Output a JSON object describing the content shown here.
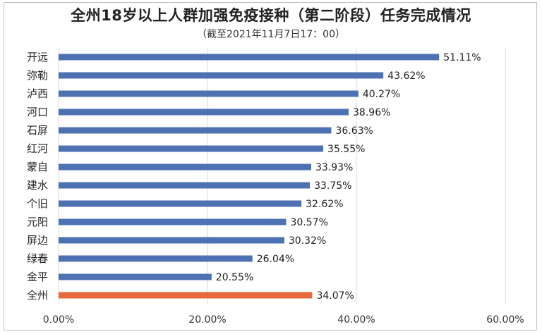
{
  "chart_data": {
    "type": "bar",
    "orientation": "horizontal",
    "title": "全州18岁以上人群加强免疫接种（第二阶段）任务完成情况",
    "subtitle": "（截至2021年11月7日17：00）",
    "categories": [
      "开远",
      "弥勒",
      "泸西",
      "河口",
      "石屏",
      "红河",
      "蒙自",
      "建水",
      "个旧",
      "元阳",
      "屏边",
      "绿春",
      "金平",
      "全州"
    ],
    "values": [
      51.11,
      43.62,
      40.27,
      38.96,
      36.63,
      35.55,
      33.93,
      33.75,
      32.62,
      30.57,
      30.32,
      26.04,
      20.55,
      34.07
    ],
    "value_labels": [
      "51.11%",
      "43.62%",
      "40.27%",
      "38.96%",
      "36.63%",
      "35.55%",
      "33.93%",
      "33.75%",
      "32.62%",
      "30.57%",
      "30.32%",
      "26.04%",
      "20.55%",
      "34.07%"
    ],
    "xlim": [
      0,
      60
    ],
    "xticks": [
      0,
      20,
      40,
      60
    ],
    "xtick_labels": [
      "0.00%",
      "20.00%",
      "40.00%",
      "60.00%"
    ],
    "grid": "vertical",
    "legend": "none",
    "colors": {
      "default": "#4e71b3",
      "highlight": "#e76a3c",
      "grid": "#d9d9d9"
    },
    "highlight_category": "全州"
  }
}
